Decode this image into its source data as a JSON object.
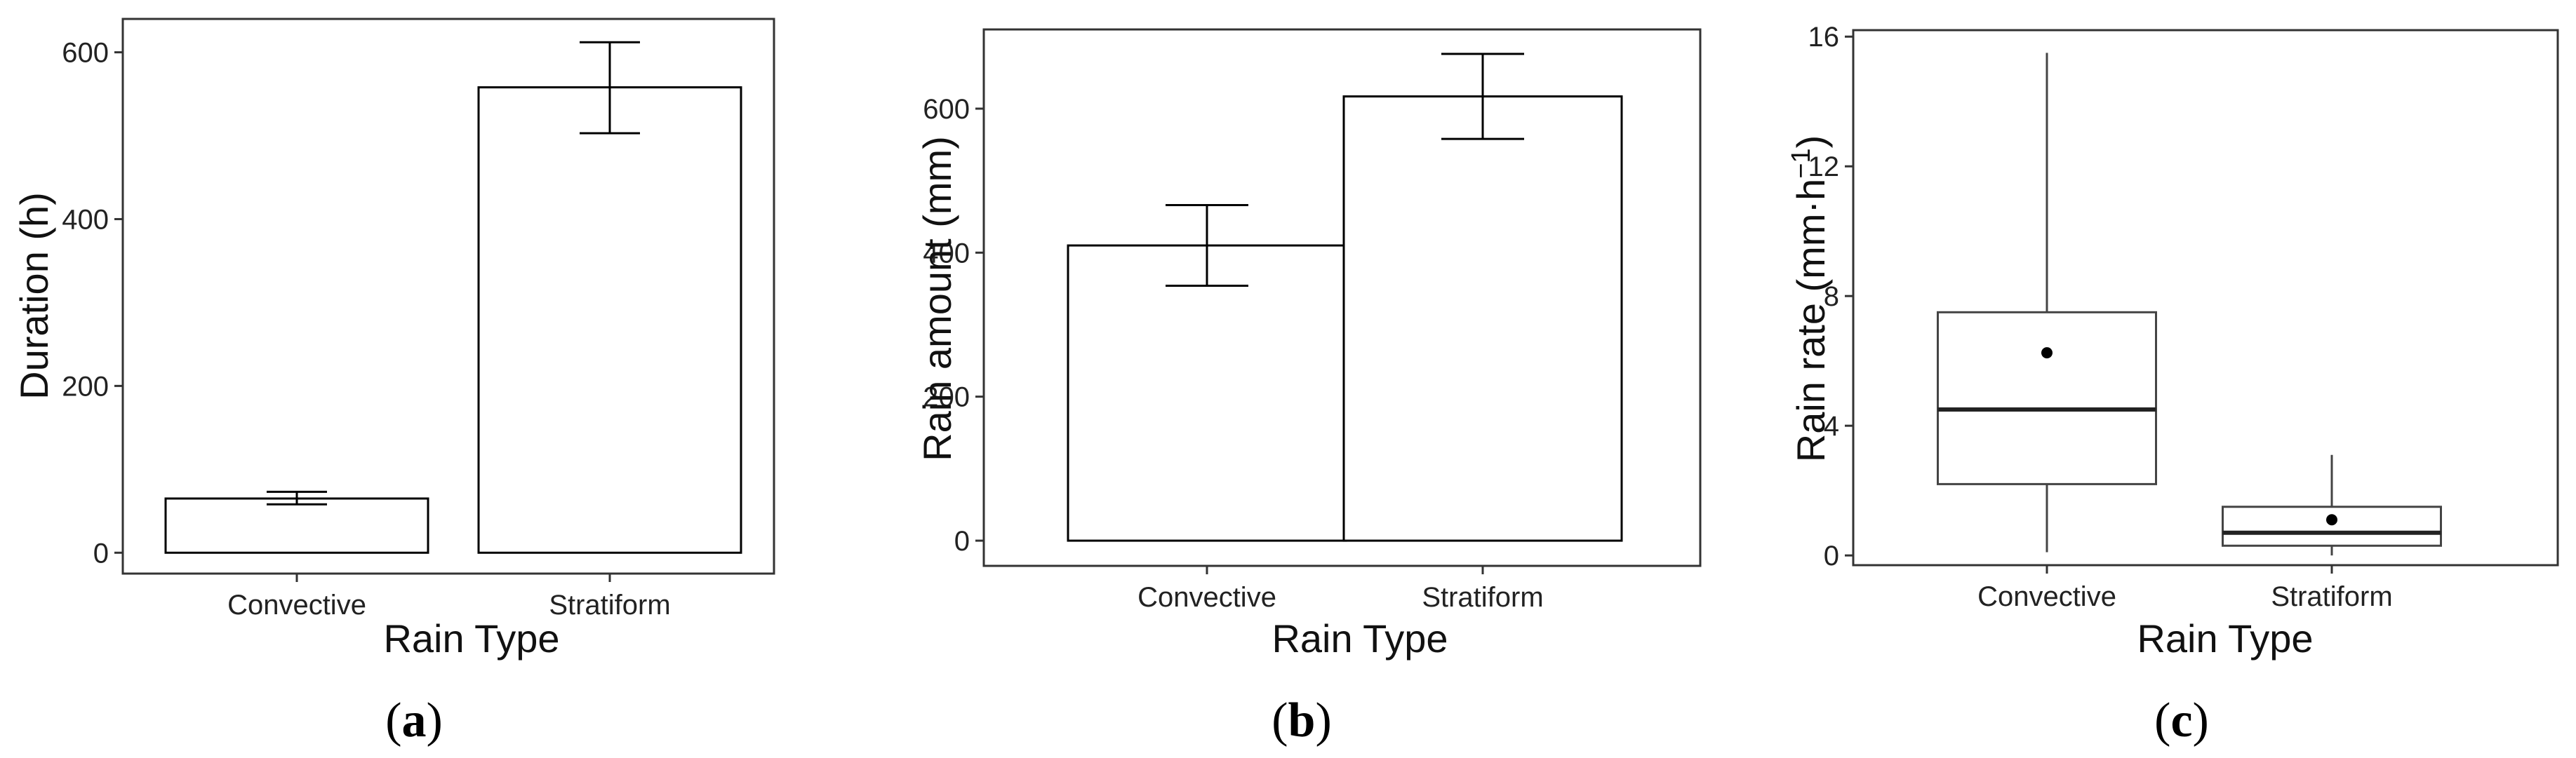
{
  "chart_data": [
    {
      "type": "bar",
      "panel_label": "a",
      "categories": [
        "Convective",
        "Stratiform"
      ],
      "values": [
        65,
        558
      ],
      "error": [
        [
          58,
          73
        ],
        [
          503,
          612
        ]
      ],
      "xlabel": "Rain Type",
      "ylabel": "Duration (h)",
      "ylim": [
        -25,
        640
      ],
      "yticks": [
        0,
        200,
        400,
        600
      ],
      "grid": false
    },
    {
      "type": "bar",
      "panel_label": "b",
      "categories": [
        "Convective",
        "Stratiform"
      ],
      "values": [
        410,
        617
      ],
      "error": [
        [
          354,
          466
        ],
        [
          558,
          676
        ]
      ],
      "xlabel": "Rain Type",
      "ylabel": "Rain amount (mm)",
      "ylim": [
        -35,
        710
      ],
      "yticks": [
        0,
        200,
        400,
        600
      ],
      "grid": false
    },
    {
      "type": "box",
      "panel_label": "c",
      "categories": [
        "Convective",
        "Stratiform"
      ],
      "boxes": [
        {
          "whisker_low": 0.1,
          "q1": 2.2,
          "median": 4.5,
          "q3": 7.5,
          "whisker_high": 15.5,
          "mean": 6.25
        },
        {
          "whisker_low": 0.0,
          "q1": 0.3,
          "median": 0.7,
          "q3": 1.5,
          "whisker_high": 3.1,
          "mean": 1.1
        }
      ],
      "xlabel": "Rain Type",
      "ylabel": "Rain rate (mm·h",
      "ylabel_sup": "−1",
      "ylabel_end": ")",
      "ylim": [
        -0.3,
        16.2
      ],
      "yticks": [
        0,
        4,
        8,
        12,
        16
      ],
      "grid": false
    }
  ]
}
